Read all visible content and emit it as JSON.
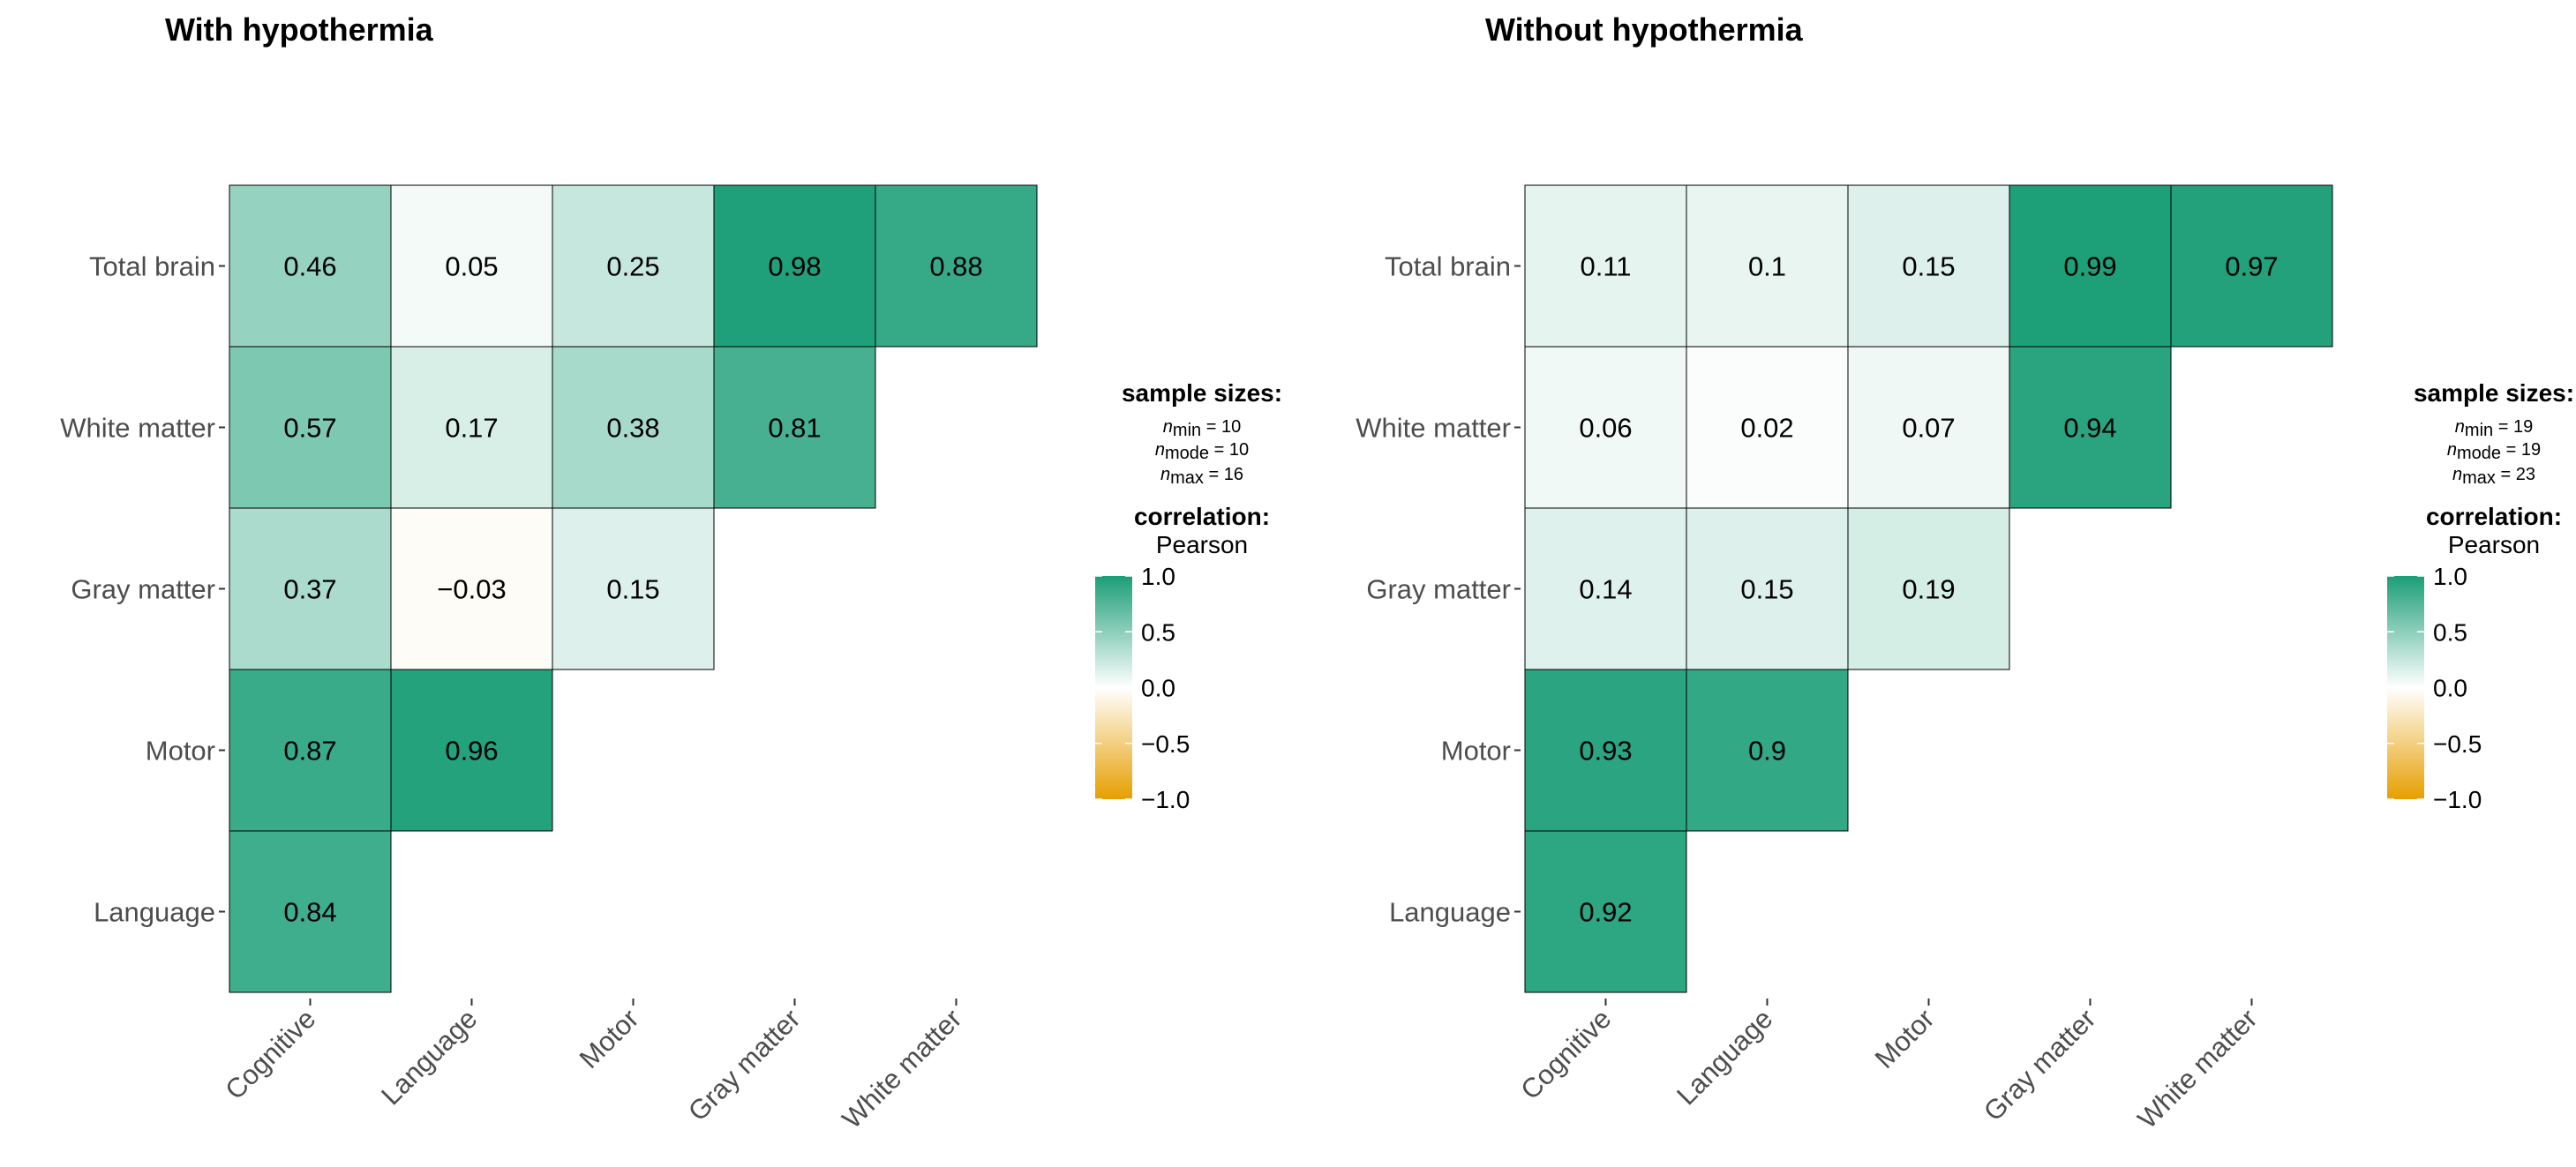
{
  "chart_data": [
    {
      "type": "heatmap",
      "title": "With hypothermia",
      "x_categories": [
        "Cognitive",
        "Language",
        "Motor",
        "Gray matter",
        "White matter"
      ],
      "y_categories": [
        "Total brain",
        "White matter",
        "Gray matter",
        "Motor",
        "Language"
      ],
      "values": [
        [
          0.46,
          0.05,
          0.25,
          0.98,
          0.88
        ],
        [
          0.57,
          0.17,
          0.38,
          0.81
        ],
        [
          0.37,
          -0.03,
          0.15
        ],
        [
          0.87,
          0.96
        ],
        [
          0.84
        ]
      ],
      "legend": {
        "sample_title": "sample sizes:",
        "n_min": "10",
        "n_mode": "10",
        "n_max": "16",
        "corr_title": "correlation:",
        "corr_method": "Pearson",
        "ticks": [
          "1.0",
          "0.5",
          "0.0",
          "−0.5",
          "−1.0"
        ]
      }
    },
    {
      "type": "heatmap",
      "title": "Without hypothermia",
      "x_categories": [
        "Cognitive",
        "Language",
        "Motor",
        "Gray matter",
        "White matter"
      ],
      "y_categories": [
        "Total brain",
        "White matter",
        "Gray matter",
        "Motor",
        "Language"
      ],
      "values": [
        [
          0.11,
          0.1,
          0.15,
          0.99,
          0.97
        ],
        [
          0.06,
          0.02,
          0.07,
          0.94
        ],
        [
          0.14,
          0.15,
          0.19
        ],
        [
          0.93,
          0.9
        ],
        [
          0.92
        ]
      ],
      "legend": {
        "sample_title": "sample sizes:",
        "n_min": "19",
        "n_mode": "19",
        "n_max": "23",
        "corr_title": "correlation:",
        "corr_method": "Pearson",
        "ticks": [
          "1.0",
          "0.5",
          "0.0",
          "−0.5",
          "−1.0"
        ]
      }
    }
  ],
  "colors": {
    "high": "#1B9E77",
    "mid": "#FFFFFF",
    "low": "#E69F00"
  },
  "color_range": [
    -1,
    1
  ]
}
